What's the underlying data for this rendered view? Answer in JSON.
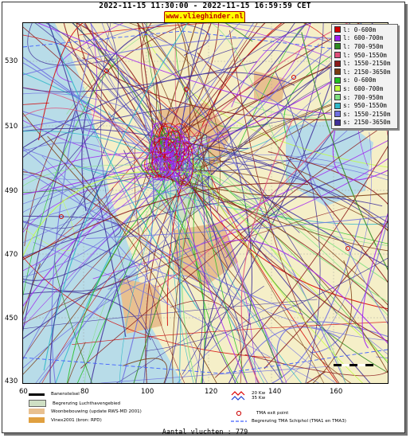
{
  "header": {
    "title": "2022-11-15 11:30:00 - 2022-11-15 16:59:59 CET",
    "site": "www.vlieghinder.nl"
  },
  "axes": {
    "y_ticks": [
      "530",
      "510",
      "490",
      "470",
      "450",
      "430"
    ],
    "x_ticks": [
      "60",
      "80",
      "100",
      "120",
      "140",
      "160"
    ]
  },
  "legend": [
    {
      "label": "l: 0-600m",
      "color": "#d40000"
    },
    {
      "label": "l: 600-700m",
      "color": "#a020f0"
    },
    {
      "label": "l: 700-950m",
      "color": "#2e8b20"
    },
    {
      "label": "l: 950-1550m",
      "color": "#e0507a"
    },
    {
      "label": "l: 1550-2150m",
      "color": "#8b1a1a"
    },
    {
      "label": "l: 2150-3650m",
      "color": "#7a3a10"
    },
    {
      "label": "s: 0-600m",
      "color": "#20c020"
    },
    {
      "label": "s: 600-700m",
      "color": "#c0ff40"
    },
    {
      "label": "s: 700-950m",
      "color": "#80e080"
    },
    {
      "label": "s: 950-1550m",
      "color": "#30b8c8"
    },
    {
      "label": "s: 1550-2150m",
      "color": "#7070e0"
    },
    {
      "label": "s: 2150-3650m",
      "color": "#40309a"
    }
  ],
  "bottom_legend": {
    "runway": "Banenstelsel",
    "airport_boundary": "Begrenzing Luchthavengebied",
    "housing": "Woonbebouwing (update RWS-MD 2001)",
    "vinex": "Vinex2001 (bron: RPD)",
    "wind1": "20 Kw",
    "wind2": "35 Kw",
    "tma_exit": "TMA exit point",
    "tma_boundary": "Begrenzing TMA Schiphol  (TMA1 en TMA3)"
  },
  "footer": {
    "count": "Aantal vluchten : 779"
  },
  "colors": {
    "sea": "#b8dce8",
    "land": "#f5efc8",
    "housing": "#e8c090",
    "airport": "#cfe0c4"
  }
}
